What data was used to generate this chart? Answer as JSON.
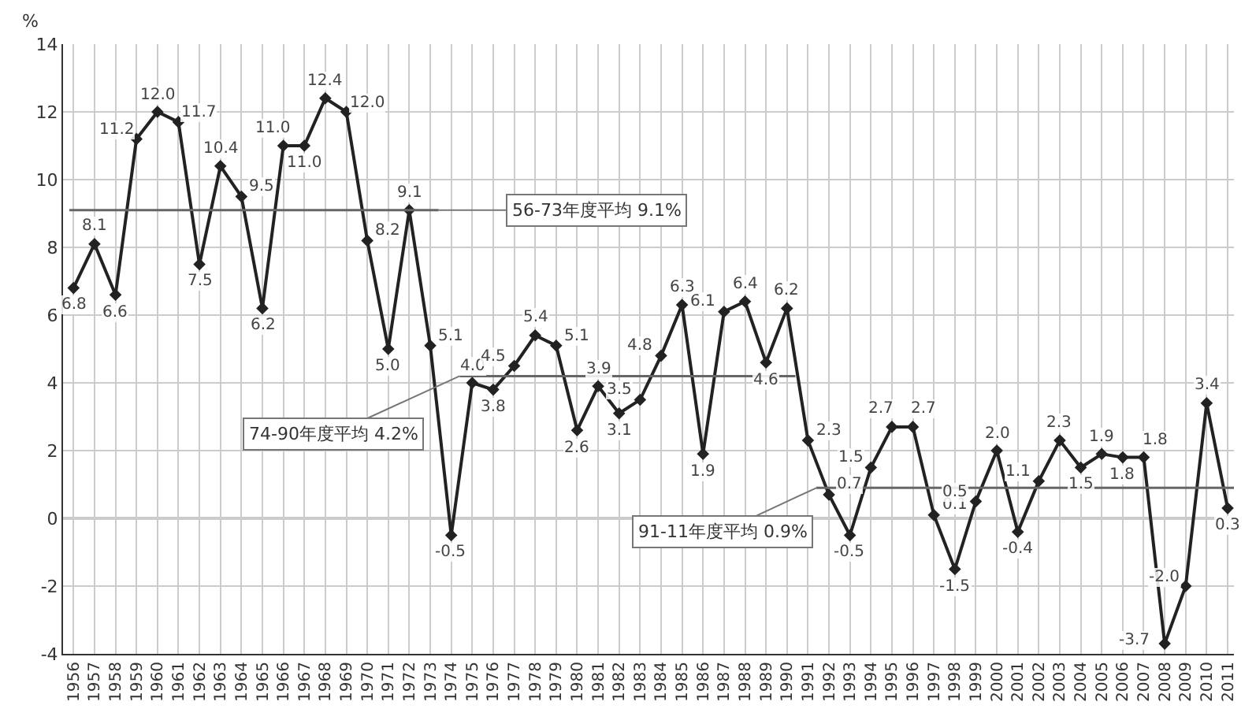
{
  "chart_data": {
    "type": "line",
    "ylabel": "%",
    "x": [
      1956,
      1957,
      1958,
      1959,
      1960,
      1961,
      1962,
      1963,
      1964,
      1965,
      1966,
      1967,
      1968,
      1969,
      1970,
      1971,
      1972,
      1973,
      1974,
      1975,
      1976,
      1977,
      1978,
      1979,
      1980,
      1981,
      1982,
      1983,
      1984,
      1985,
      1986,
      1987,
      1988,
      1989,
      1990,
      1991,
      1992,
      1993,
      1994,
      1995,
      1996,
      1997,
      1998,
      1999,
      2000,
      2001,
      2002,
      2003,
      2004,
      2005,
      2006,
      2007,
      2008,
      2009,
      2010,
      2011
    ],
    "series": [
      {
        "color": "#222222",
        "values": [
          6.8,
          8.1,
          6.6,
          11.2,
          12.0,
          11.7,
          7.5,
          10.4,
          9.5,
          6.2,
          11.0,
          11.0,
          12.4,
          12.0,
          8.2,
          5.0,
          9.1,
          5.1,
          -0.5,
          4.0,
          3.8,
          4.5,
          5.4,
          5.1,
          2.6,
          3.9,
          3.1,
          3.5,
          4.8,
          6.3,
          1.9,
          6.1,
          6.4,
          4.6,
          6.2,
          2.3,
          0.7,
          -0.5,
          1.5,
          2.7,
          2.7,
          0.1,
          -1.5,
          0.5,
          2.0,
          -0.4,
          1.1,
          2.3,
          1.5,
          1.9,
          1.8,
          1.8,
          -3.7,
          -2.0,
          3.4,
          0.3
        ],
        "marker": "diamond",
        "value_labels": [
          "6.8",
          "8.1",
          "6.6",
          "11.2",
          "12.0",
          "11.7",
          "7.5",
          "10.4",
          "9.5",
          "6.2",
          "11.0",
          "11.0",
          "12.4",
          "12.0",
          "8.2",
          "5.0",
          "9.1",
          "5.1",
          "-0.5",
          "4.0",
          "3.8",
          "4.5",
          "5.4",
          "5.1",
          "2.6",
          "3.9",
          "3.1",
          "3.5",
          "4.8",
          "6.3",
          "1.9",
          "6.1",
          "6.4",
          "4.6",
          "6.2",
          "2.3",
          "0.7",
          "-0.5",
          "1.5",
          "2.7",
          "2.7",
          "0.1",
          "-1.5",
          "0.5",
          "2.0",
          "-0.4",
          "1.1",
          "2.3",
          "1.5",
          "1.9",
          "1.8",
          "1.8",
          "-3.7",
          "-2.0",
          "3.4",
          "0.3"
        ]
      },
      {
        "type": "line",
        "color": "#666666",
        "x": [
          1955.8,
          1973.4
        ],
        "values": [
          9.1,
          9.1
        ],
        "marker": "none"
      },
      {
        "type": "line",
        "color": "#666666",
        "x": [
          1974.4,
          1990.4
        ],
        "values": [
          4.2,
          4.2
        ],
        "marker": "none"
      },
      {
        "type": "line",
        "color": "#666666",
        "x": [
          1991.4,
          2011.3
        ],
        "values": [
          0.9,
          0.9
        ],
        "marker": "none"
      }
    ],
    "annotations": [
      {
        "text": "56-73年度平均 9.1%",
        "x": 1973.4,
        "y": 9.1
      },
      {
        "text": "74-90年度平均 4.2%",
        "x": 1974.4,
        "y": 4.2
      },
      {
        "text": "91-11年度平均 0.9%",
        "x": 1991.4,
        "y": 0.9
      }
    ],
    "xlim": [
      1955.5,
      2011.3
    ],
    "xticks": [
      1956,
      1957,
      1958,
      1959,
      1960,
      1961,
      1962,
      1963,
      1964,
      1965,
      1966,
      1967,
      1968,
      1969,
      1970,
      1971,
      1972,
      1973,
      1974,
      1975,
      1976,
      1977,
      1978,
      1979,
      1980,
      1981,
      1982,
      1983,
      1984,
      1985,
      1986,
      1987,
      1988,
      1989,
      1990,
      1991,
      1992,
      1993,
      1994,
      1995,
      1996,
      1997,
      1998,
      1999,
      2000,
      2001,
      2002,
      2003,
      2004,
      2005,
      2006,
      2007,
      2008,
      2009,
      2010,
      2011
    ],
    "ylim": [
      -4,
      14
    ],
    "yticks": [
      -4,
      -2,
      0,
      2,
      4,
      6,
      8,
      10,
      12,
      14
    ],
    "ref_lines": [
      {
        "axis": "y",
        "value": 0,
        "color": "#333333"
      }
    ],
    "grid": true,
    "line_style": "solid"
  }
}
